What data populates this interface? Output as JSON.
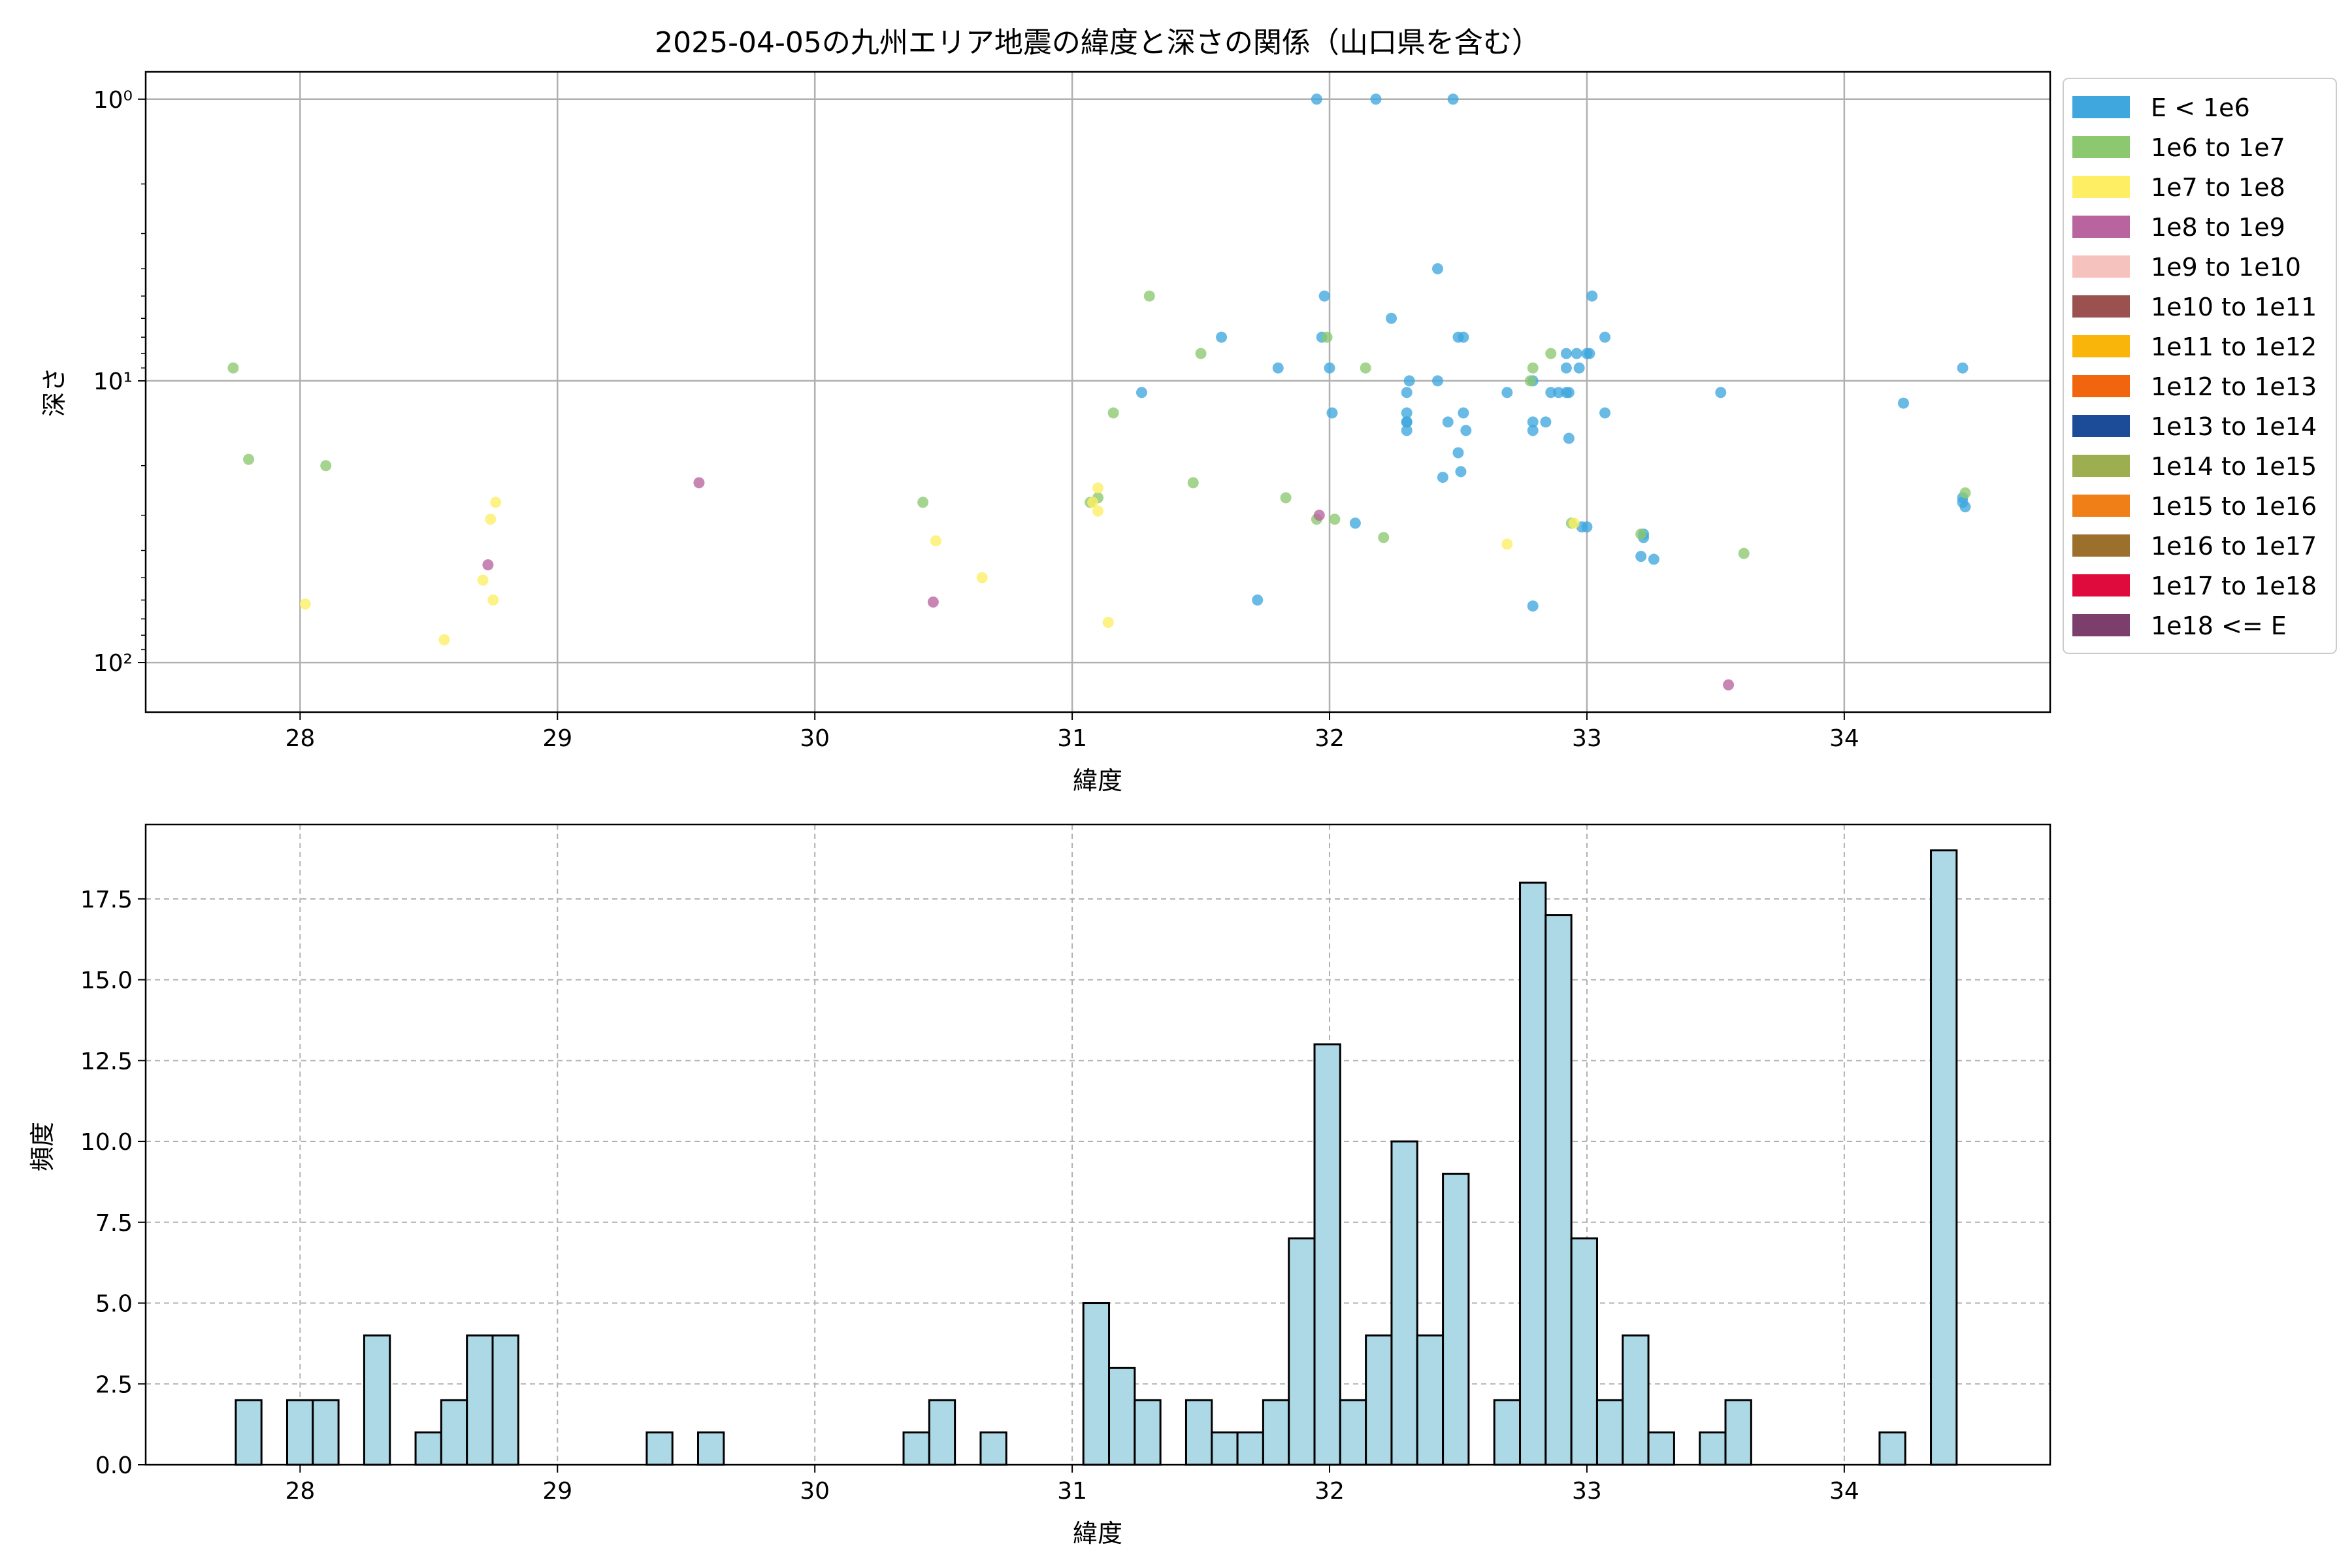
{
  "chart_data": [
    {
      "type": "scatter",
      "title": "2025-04-05の九州エリア地震の緯度と深さの関係（山口県を含む）",
      "xlabel": "緯度",
      "ylabel": "深さ",
      "xlim": [
        27.4,
        34.8
      ],
      "ylim": [
        150,
        0.8
      ],
      "yscale": "log",
      "y_inverted": true,
      "x_ticks": [
        "28",
        "29",
        "30",
        "31",
        "32",
        "33",
        "34"
      ],
      "y_ticks": [
        "10⁰",
        "10¹",
        "10²"
      ],
      "grid": true,
      "legend_position": "outside-right",
      "legend": [
        {
          "label": "E < 1e6",
          "color": "#3fa6de"
        },
        {
          "label": "1e6 to 1e7",
          "color": "#8cc870"
        },
        {
          "label": "1e7 to 1e8",
          "color": "#fdee63"
        },
        {
          "label": "1e8 to 1e9",
          "color": "#b9649f"
        },
        {
          "label": "1e9 to 1e10",
          "color": "#f6c2bd"
        },
        {
          "label": "1e10 to 1e11",
          "color": "#9a514f"
        },
        {
          "label": "1e11 to 1e12",
          "color": "#f9b509"
        },
        {
          "label": "1e12 to 1e13",
          "color": "#f0650d"
        },
        {
          "label": "1e13 to 1e14",
          "color": "#1c4c97"
        },
        {
          "label": "1e14 to 1e15",
          "color": "#9cae4f"
        },
        {
          "label": "1e15 to 1e16",
          "color": "#ef7f16"
        },
        {
          "label": "1e16 to 1e17",
          "color": "#9a702c"
        },
        {
          "label": "1e17 to 1e18",
          "color": "#e00b3d"
        },
        {
          "label": "1e18 <= E",
          "color": "#7c3e6d"
        }
      ],
      "series": [
        {
          "color": "#3fa6de",
          "points": [
            [
              31.95,
              1
            ],
            [
              32.18,
              1
            ],
            [
              32.48,
              1
            ],
            [
              32.42,
              4
            ],
            [
              31.98,
              5
            ],
            [
              33.02,
              5
            ],
            [
              32.24,
              6
            ],
            [
              31.58,
              7
            ],
            [
              31.97,
              7
            ],
            [
              32.5,
              7
            ],
            [
              32.52,
              7
            ],
            [
              33.07,
              7
            ],
            [
              32.92,
              8
            ],
            [
              32.96,
              8
            ],
            [
              33.0,
              8
            ],
            [
              33.01,
              8
            ],
            [
              31.8,
              9
            ],
            [
              32.0,
              9
            ],
            [
              32.92,
              9
            ],
            [
              32.97,
              9
            ],
            [
              34.46,
              9
            ],
            [
              32.31,
              10
            ],
            [
              32.42,
              10
            ],
            [
              32.79,
              10
            ],
            [
              31.27,
              11
            ],
            [
              32.3,
              11
            ],
            [
              32.69,
              11
            ],
            [
              32.86,
              11
            ],
            [
              32.89,
              11
            ],
            [
              32.92,
              11
            ],
            [
              32.93,
              11
            ],
            [
              33.52,
              11
            ],
            [
              32.01,
              13
            ],
            [
              32.3,
              13
            ],
            [
              32.52,
              13
            ],
            [
              33.07,
              13
            ],
            [
              34.23,
              12
            ],
            [
              32.3,
              14
            ],
            [
              32.3,
              14
            ],
            [
              32.46,
              14
            ],
            [
              32.79,
              14
            ],
            [
              32.84,
              14
            ],
            [
              32.3,
              15
            ],
            [
              32.79,
              15
            ],
            [
              32.53,
              15
            ],
            [
              32.93,
              16
            ],
            [
              32.5,
              18
            ],
            [
              32.51,
              21
            ],
            [
              32.44,
              22
            ],
            [
              34.46,
              26
            ],
            [
              34.46,
              27
            ],
            [
              34.47,
              28
            ],
            [
              32.1,
              32
            ],
            [
              32.98,
              33
            ],
            [
              33.0,
              33
            ],
            [
              33.22,
              35
            ],
            [
              33.22,
              36
            ],
            [
              33.21,
              42
            ],
            [
              33.26,
              43
            ],
            [
              31.72,
              60
            ],
            [
              32.79,
              63
            ]
          ]
        },
        {
          "color": "#8cc870",
          "points": [
            [
              31.3,
              5
            ],
            [
              31.5,
              8
            ],
            [
              31.99,
              7
            ],
            [
              32.14,
              9
            ],
            [
              32.79,
              9
            ],
            [
              32.86,
              8
            ],
            [
              32.78,
              10
            ],
            [
              31.16,
              13
            ],
            [
              27.74,
              9
            ],
            [
              27.8,
              19
            ],
            [
              28.1,
              20
            ],
            [
              30.42,
              27
            ],
            [
              31.07,
              27
            ],
            [
              31.1,
              26
            ],
            [
              31.47,
              23
            ],
            [
              31.83,
              26
            ],
            [
              32.02,
              31
            ],
            [
              31.95,
              31
            ],
            [
              32.21,
              36
            ],
            [
              32.94,
              32
            ],
            [
              33.21,
              35
            ],
            [
              33.61,
              41
            ],
            [
              34.47,
              25
            ]
          ]
        },
        {
          "color": "#fdee63",
          "points": [
            [
              28.02,
              62
            ],
            [
              28.56,
              83
            ],
            [
              28.71,
              51
            ],
            [
              28.74,
              31
            ],
            [
              28.76,
              27
            ],
            [
              28.75,
              60
            ],
            [
              30.47,
              37
            ],
            [
              30.65,
              50
            ],
            [
              31.1,
              24
            ],
            [
              31.1,
              29
            ],
            [
              31.08,
              27
            ],
            [
              31.14,
              72
            ],
            [
              32.69,
              38
            ],
            [
              32.95,
              32
            ]
          ]
        },
        {
          "color": "#b9649f",
          "points": [
            [
              29.55,
              23
            ],
            [
              28.73,
              45
            ],
            [
              30.46,
              61
            ],
            [
              31.96,
              30
            ],
            [
              33.55,
              120
            ]
          ]
        }
      ]
    },
    {
      "type": "bar",
      "subtype": "histogram",
      "xlabel": "緯度",
      "ylabel": "頻度",
      "xlim": [
        27.4,
        34.8
      ],
      "ylim": [
        0,
        19.8
      ],
      "x_ticks": [
        "28",
        "29",
        "30",
        "31",
        "32",
        "33",
        "34"
      ],
      "y_ticks": [
        "0.0",
        "2.5",
        "5.0",
        "7.5",
        "10.0",
        "12.5",
        "15.0",
        "17.5"
      ],
      "grid": true,
      "bar_color": "#add8e6",
      "edge_color": "#000000",
      "bin_start": 27.75,
      "bin_width": 0.0998,
      "values": [
        2,
        0,
        2,
        2,
        0,
        4,
        0,
        1,
        2,
        4,
        4,
        0,
        0,
        0,
        0,
        0,
        1,
        0,
        1,
        0,
        0,
        0,
        0,
        0,
        0,
        0,
        1,
        2,
        0,
        1,
        0,
        0,
        0,
        5,
        3,
        2,
        0,
        2,
        1,
        1,
        2,
        7,
        13,
        2,
        4,
        10,
        4,
        9,
        0,
        2,
        18,
        17,
        7,
        2,
        4,
        1,
        0,
        1,
        2,
        0,
        0,
        0,
        0,
        0,
        1,
        0,
        19
      ]
    }
  ]
}
